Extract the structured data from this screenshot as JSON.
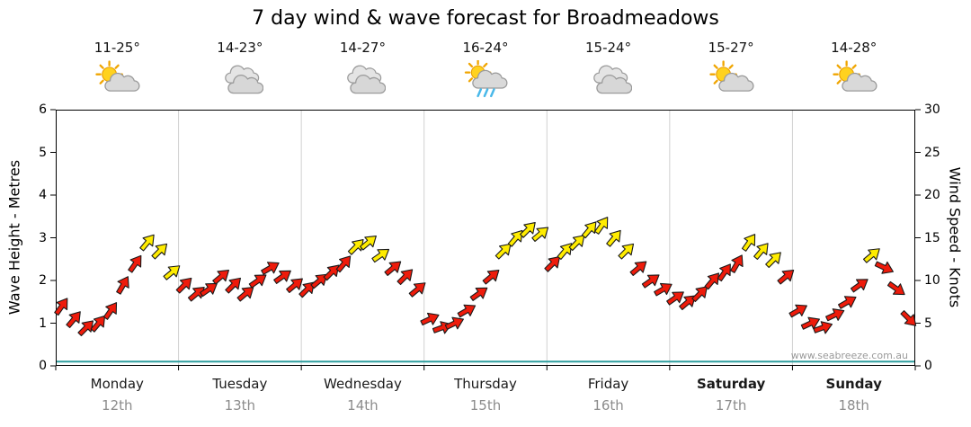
{
  "title": "7 day wind & wave forecast for Broadmeadows",
  "watermark": "www.seabreeze.com.au",
  "days": [
    {
      "name": "Monday",
      "date": "12th",
      "temp": "11-25°",
      "icon": "sun-cloud",
      "bold": false
    },
    {
      "name": "Tuesday",
      "date": "13th",
      "temp": "14-23°",
      "icon": "cloud",
      "bold": false
    },
    {
      "name": "Wednesday",
      "date": "14th",
      "temp": "14-27°",
      "icon": "cloud",
      "bold": false
    },
    {
      "name": "Thursday",
      "date": "15th",
      "temp": "16-24°",
      "icon": "sun-cloud-rain",
      "bold": false
    },
    {
      "name": "Friday",
      "date": "16th",
      "temp": "15-24°",
      "icon": "cloud",
      "bold": false
    },
    {
      "name": "Saturday",
      "date": "17th",
      "temp": "15-27°",
      "icon": "sun-cloud",
      "bold": true
    },
    {
      "name": "Sunday",
      "date": "18th",
      "temp": "14-28°",
      "icon": "sun-cloud",
      "bold": true
    }
  ],
  "colors": {
    "arrow_red": "#ee1b0b",
    "arrow_yellow": "#ffec00",
    "arrow_outline": "#1a1a1a",
    "wave_line": "#2f9e9e",
    "grid": "#d0d0d0",
    "axis": "#000000",
    "date_text": "#8c8c8c"
  },
  "chart_data": {
    "type": "scatter",
    "subtype": "wind-direction-arrows-with-wave-line",
    "title": "7 day wind & wave forecast for Broadmeadows",
    "x_axis": {
      "categories": [
        "Monday 12th",
        "Tuesday 13th",
        "Wednesday 14th",
        "Thursday 15th",
        "Friday 16th",
        "Saturday 17th",
        "Sunday 18th"
      ],
      "points_per_day": 10
    },
    "y_left": {
      "title": "Wave Height - Metres",
      "range": [
        0,
        6
      ],
      "ticks": [
        0,
        1,
        2,
        3,
        4,
        5,
        6
      ]
    },
    "y_right": {
      "title": "Wind Speed - Knots",
      "range": [
        0,
        30
      ],
      "ticks": [
        0,
        5,
        10,
        15,
        20,
        25,
        30
      ]
    },
    "grid": {
      "vertical_day_separators": true,
      "horizontal_gridlines": false
    },
    "wave_series": {
      "label": "wave height line",
      "height_m": 0.1,
      "shape": "flat line along bottom of plot"
    },
    "wind_series": [
      {
        "day": "Monday",
        "knots": [
          7,
          5.5,
          4.5,
          5,
          6.5,
          9.5,
          12,
          14.5,
          13.5,
          11
        ],
        "dir_deg": [
          -55,
          -50,
          -45,
          -50,
          -55,
          -60,
          -55,
          -50,
          -45,
          -40
        ],
        "colors": [
          "red",
          "red",
          "red",
          "red",
          "red",
          "red",
          "red",
          "yellow",
          "yellow",
          "yellow"
        ]
      },
      {
        "day": "Tuesday",
        "knots": [
          9.5,
          8.5,
          9,
          10.5,
          9.5,
          8.5,
          10,
          11.5,
          10.5,
          9.5
        ],
        "dir_deg": [
          -45,
          -40,
          -35,
          -40,
          -45,
          -40,
          -35,
          -30,
          -35,
          -40
        ],
        "colors": [
          "red",
          "red",
          "red",
          "red",
          "red",
          "red",
          "red",
          "red",
          "red",
          "red"
        ]
      },
      {
        "day": "Wednesday",
        "knots": [
          9,
          10,
          11,
          12,
          14,
          14.5,
          13,
          11.5,
          10.5,
          9
        ],
        "dir_deg": [
          -45,
          -40,
          -45,
          -50,
          -45,
          -40,
          -35,
          -40,
          -45,
          -40
        ],
        "colors": [
          "red",
          "red",
          "red",
          "red",
          "yellow",
          "yellow",
          "yellow",
          "red",
          "red",
          "red"
        ]
      },
      {
        "day": "Thursday",
        "knots": [
          5.5,
          4.5,
          5,
          6.5,
          8.5,
          10.5,
          13.5,
          15,
          16,
          15.5
        ],
        "dir_deg": [
          -25,
          -20,
          -25,
          -30,
          -35,
          -40,
          -45,
          -50,
          -45,
          -40
        ],
        "colors": [
          "red",
          "red",
          "red",
          "red",
          "red",
          "red",
          "yellow",
          "yellow",
          "yellow",
          "yellow"
        ]
      },
      {
        "day": "Friday",
        "knots": [
          12,
          13.5,
          14.5,
          16,
          16.5,
          15,
          13.5,
          11.5,
          10,
          9
        ],
        "dir_deg": [
          -45,
          -50,
          -45,
          -50,
          -55,
          -50,
          -45,
          -40,
          -35,
          -30
        ],
        "colors": [
          "red",
          "yellow",
          "yellow",
          "yellow",
          "yellow",
          "yellow",
          "yellow",
          "red",
          "red",
          "red"
        ]
      },
      {
        "day": "Saturday",
        "knots": [
          8,
          7.5,
          8.5,
          10,
          11,
          12,
          14.5,
          13.5,
          12.5,
          10.5
        ],
        "dir_deg": [
          -35,
          -40,
          -45,
          -50,
          -55,
          -60,
          -55,
          -50,
          -45,
          -40
        ],
        "colors": [
          "red",
          "red",
          "red",
          "red",
          "red",
          "red",
          "yellow",
          "yellow",
          "yellow",
          "red"
        ]
      },
      {
        "day": "Sunday",
        "knots": [
          6.5,
          5,
          4.5,
          6,
          7.5,
          9.5,
          13,
          11.5,
          9,
          5.5
        ],
        "dir_deg": [
          -30,
          -25,
          -20,
          -25,
          -30,
          -35,
          -40,
          25,
          35,
          45
        ],
        "colors": [
          "red",
          "red",
          "red",
          "red",
          "red",
          "red",
          "yellow",
          "red",
          "red",
          "red"
        ]
      }
    ]
  }
}
